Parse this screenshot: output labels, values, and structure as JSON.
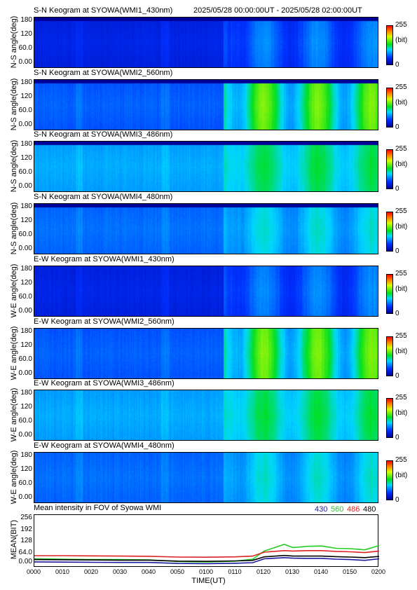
{
  "date_range": "2025/05/28 00:00:00UT - 2025/05/28 02:00:00UT",
  "colorbar": {
    "max_label": "255",
    "unit_label": "(bit)",
    "min_label": "0"
  },
  "keogram_y_ticks": [
    "180",
    "120",
    "60.0",
    "0.00"
  ],
  "panels": [
    {
      "title": "S-N Keogram at SYOWA(WMI1_430nm)",
      "ylabel": "N-S angle(deg)",
      "channel": "430"
    },
    {
      "title": "S-N Keogram at SYOWA(WMI2_560nm)",
      "ylabel": "N-S angle(deg)",
      "channel": "560"
    },
    {
      "title": "S-N Keogram at SYOWA(WMI3_486nm)",
      "ylabel": "N-S angle(deg)",
      "channel": "486"
    },
    {
      "title": "S-N Keogram at SYOWA(WMI4_480nm)",
      "ylabel": "N-S angle(deg)",
      "channel": "480"
    },
    {
      "title": "E-W Keogram at SYOWA(WMI1_430nm)",
      "ylabel": "W-E angle(deg)",
      "channel": "430"
    },
    {
      "title": "E-W Keogram at SYOWA(WMI2_560nm)",
      "ylabel": "W-E angle(deg)",
      "channel": "560"
    },
    {
      "title": "E-W Keogram at SYOWA(WMI3_486nm)",
      "ylabel": "W-E angle(deg)",
      "channel": "486"
    },
    {
      "title": "E-W Keogram at SYOWA(WMI4_480nm)",
      "ylabel": "W-E angle(deg)",
      "channel": "480"
    }
  ],
  "mean": {
    "title": "Mean intensity in FOV of Syowa WMI",
    "ylabel": "MEAN(BIT)",
    "yticks": [
      "256",
      "192",
      "128",
      "64.0",
      "0.00"
    ],
    "legend": [
      {
        "label": "430",
        "color": "#1a1aa0"
      },
      {
        "label": "560",
        "color": "#22cc22"
      },
      {
        "label": "486",
        "color": "#dd2222"
      },
      {
        "label": "480",
        "color": "#000000"
      }
    ]
  },
  "x_ticks": [
    "0000",
    "0010",
    "0020",
    "0030",
    "0040",
    "0050",
    "0100",
    "0110",
    "0120",
    "0130",
    "0140",
    "0150",
    "0200"
  ],
  "xlabel": "TIME(UT)",
  "chart_data": {
    "type": "line",
    "title": "Mean intensity in FOV of Syowa WMI",
    "xlabel": "TIME(UT)",
    "ylabel": "MEAN(BIT)",
    "ylim": [
      0,
      256
    ],
    "x": [
      "0000",
      "0010",
      "0020",
      "0030",
      "0040",
      "0050",
      "0100",
      "0110",
      "0116",
      "0120",
      "0127",
      "0130",
      "0135",
      "0140",
      "0145",
      "0150",
      "0155",
      "0200"
    ],
    "series": [
      {
        "name": "430",
        "color": "#1a1aa0",
        "values": [
          22,
          21,
          20,
          19,
          19,
          14,
          13,
          15,
          18,
          38,
          44,
          41,
          40,
          40,
          36,
          34,
          30,
          38
        ]
      },
      {
        "name": "560",
        "color": "#22cc22",
        "values": [
          38,
          36,
          34,
          34,
          32,
          24,
          22,
          26,
          36,
          78,
          112,
          96,
          102,
          104,
          92,
          90,
          84,
          106
        ]
      },
      {
        "name": "486",
        "color": "#dd2222",
        "values": [
          54,
          54,
          53,
          52,
          51,
          47,
          46,
          48,
          52,
          72,
          80,
          78,
          80,
          80,
          76,
          74,
          70,
          78
        ]
      },
      {
        "name": "480",
        "color": "#000000",
        "values": [
          34,
          33,
          32,
          31,
          31,
          26,
          25,
          27,
          30,
          48,
          55,
          52,
          52,
          52,
          49,
          47,
          44,
          50
        ]
      }
    ]
  }
}
